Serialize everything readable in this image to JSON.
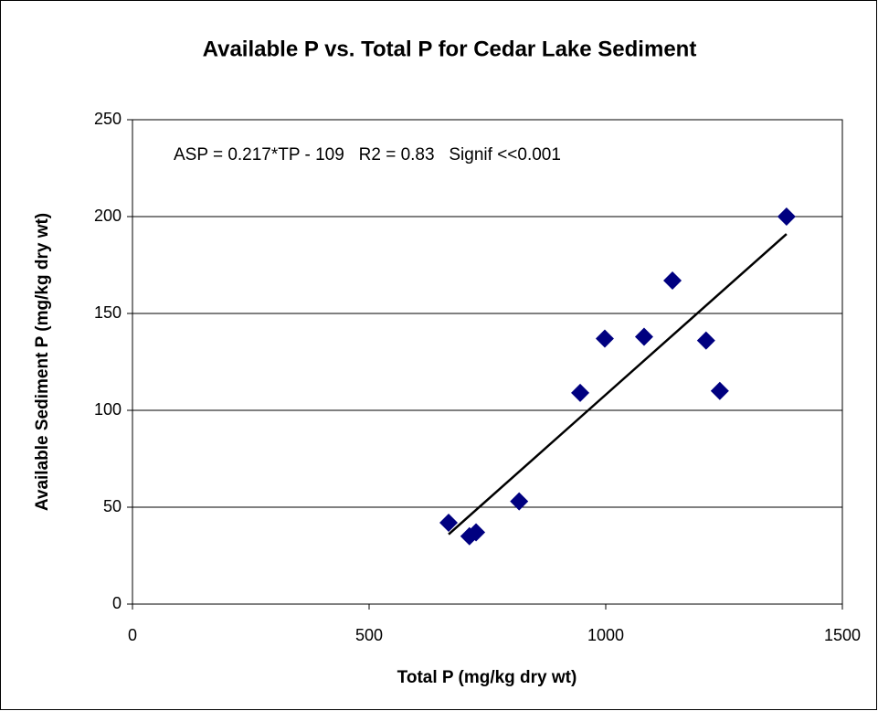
{
  "chart_data": {
    "type": "scatter",
    "title": "Available P vs. Total P for Cedar Lake Sediment",
    "xlabel": "Total P (mg/kg dry wt)",
    "ylabel": "Available Sediment P (mg/kg dry wt)",
    "annotation": "ASP = 0.217*TP - 109   R2 = 0.83   Signif <<0.001",
    "points": {
      "color": "#000080",
      "x": [
        668,
        712,
        726,
        817,
        946,
        998,
        1081,
        1141,
        1212,
        1241,
        1382
      ],
      "values": [
        42,
        35,
        37,
        53,
        109,
        137,
        138,
        167,
        136,
        110,
        200
      ]
    },
    "trendline": {
      "color": "#000000",
      "x": [
        668,
        1382
      ],
      "values": [
        36,
        191
      ]
    },
    "xlim": [
      0,
      1500
    ],
    "xticks": [
      0,
      500,
      1000,
      1500
    ],
    "ylim": [
      0,
      250
    ],
    "yticks": [
      0,
      50,
      100,
      150,
      200,
      250
    ],
    "grid": true
  }
}
